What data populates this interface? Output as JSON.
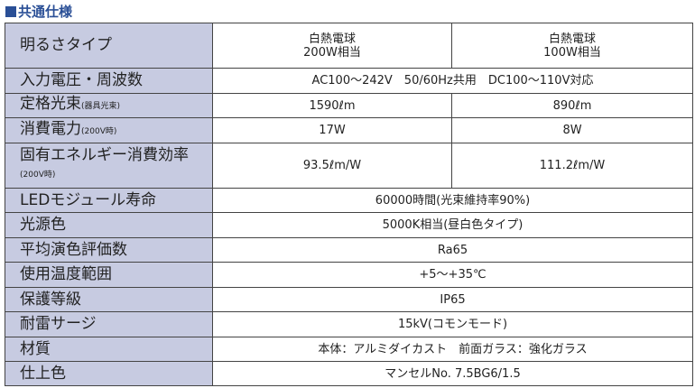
{
  "title": "共通仕様",
  "rows": [
    {
      "label": "明るさタイプ",
      "values": [
        "白熱電球\n200W相当",
        "白熱電球\n100W相当"
      ]
    },
    {
      "label": "入力電圧・周波数",
      "values": [
        "AC100～242V　50/60Hz共用　DC100～110V対応"
      ]
    },
    {
      "label": "定格光束",
      "note": "(器具光束)",
      "values": [
        "1590ℓm",
        "890ℓm"
      ]
    },
    {
      "label": "消費電力",
      "note": "(200V時)",
      "values": [
        "17W",
        "8W"
      ]
    },
    {
      "label": "固有エネルギー消費効率",
      "note": "(200V時)",
      "values": [
        "93.5ℓm/W",
        "111.2ℓm/W"
      ]
    },
    {
      "label": "LEDモジュール寿命",
      "values": [
        "60000時間(光束維持率90%)"
      ]
    },
    {
      "label": "光源色",
      "values": [
        "5000K相当(昼白色タイプ)"
      ]
    },
    {
      "label": "平均演色評価数",
      "values": [
        "Ra65"
      ]
    },
    {
      "label": "使用温度範囲",
      "values": [
        "+5～+35℃"
      ]
    },
    {
      "label": "保護等級",
      "values": [
        "IP65"
      ]
    },
    {
      "label": "耐雷サージ",
      "values": [
        "15kV(コモンモード)"
      ]
    },
    {
      "label": "材質",
      "values": [
        "本体：アルミダイカスト　前面ガラス：強化ガラス"
      ]
    },
    {
      "label": "仕上色",
      "values": [
        "マンセルNo. 7.5BG6/1.5"
      ]
    }
  ]
}
